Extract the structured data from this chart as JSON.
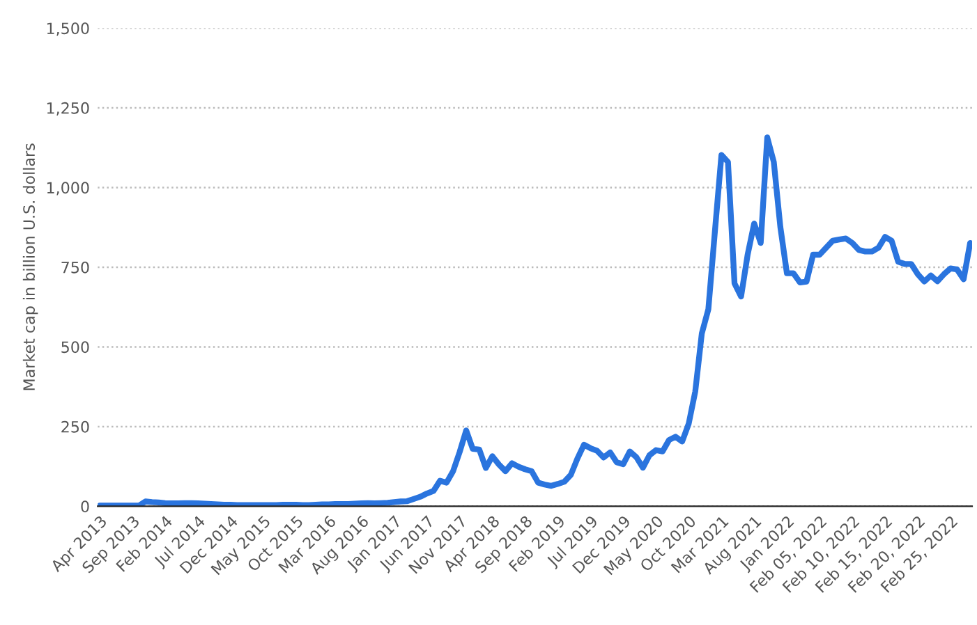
{
  "chart_data": {
    "type": "line",
    "ylabel": "Market cap in billion U.S. dollars",
    "categories": [
      "Apr 2013",
      null,
      null,
      null,
      null,
      "Sep 2013",
      null,
      null,
      null,
      null,
      "Feb 2014",
      null,
      null,
      null,
      null,
      "Jul 2014",
      null,
      null,
      null,
      null,
      "Dec 2014",
      null,
      null,
      null,
      null,
      "May 2015",
      null,
      null,
      null,
      null,
      "Oct 2015",
      null,
      null,
      null,
      null,
      "Mar 2016",
      null,
      null,
      null,
      null,
      "Aug 2016",
      null,
      null,
      null,
      null,
      "Jan 2017",
      null,
      null,
      null,
      null,
      "Jun 2017",
      null,
      null,
      null,
      null,
      "Nov 2017",
      null,
      null,
      null,
      null,
      "Apr 2018",
      null,
      null,
      null,
      null,
      "Sep 2018",
      null,
      null,
      null,
      null,
      "Feb 2019",
      null,
      null,
      null,
      null,
      "Jul 2019",
      null,
      null,
      null,
      null,
      "Dec 2019",
      null,
      null,
      null,
      null,
      "May 2020",
      null,
      null,
      null,
      null,
      "Oct 2020",
      null,
      null,
      null,
      null,
      "Mar 2021",
      null,
      null,
      null,
      null,
      "Aug 2021",
      null,
      null,
      null,
      null,
      "Jan 2022",
      null,
      null,
      null,
      null,
      "Feb 05, 2022",
      null,
      null,
      null,
      null,
      "Feb 10, 2022",
      null,
      null,
      null,
      null,
      "Feb 15, 2022",
      null,
      null,
      null,
      null,
      "Feb 20, 2022",
      null,
      null,
      null,
      null,
      "Feb 25, 2022",
      null,
      null,
      null
    ],
    "series": [
      {
        "color": "#2a74de",
        "values": [
          2,
          2,
          2,
          2,
          2,
          2,
          2,
          15,
          13,
          12,
          10,
          9,
          9,
          10,
          10,
          9,
          8,
          7,
          6,
          5,
          5,
          4,
          4,
          4,
          4,
          4,
          4,
          4,
          5,
          5,
          5,
          4,
          4,
          5,
          6,
          6,
          7,
          7,
          7,
          8,
          9,
          10,
          9,
          10,
          11,
          13,
          15,
          16,
          23,
          30,
          40,
          48,
          80,
          74,
          110,
          170,
          238,
          180,
          178,
          120,
          157,
          131,
          110,
          135,
          124,
          116,
          110,
          74,
          68,
          64,
          70,
          77,
          99,
          150,
          193,
          182,
          174,
          153,
          169,
          138,
          132,
          172,
          154,
          121,
          160,
          176,
          172,
          208,
          218,
          203,
          259,
          360,
          542,
          618,
          862,
          1102,
          1080,
          699,
          658,
          789,
          887,
          826,
          1157,
          1080,
          876,
          731,
          731,
          702,
          705,
          789,
          789,
          811,
          833,
          837,
          840,
          826,
          804,
          799,
          799,
          811,
          845,
          833,
          767,
          760,
          760,
          728,
          705,
          724,
          706,
          728,
          746,
          743,
          712,
          826
        ]
      }
    ],
    "ylim": [
      0,
      1500
    ],
    "yticks": [
      0,
      250,
      500,
      750,
      {
        "value": 1000,
        "label": "1,000"
      },
      {
        "value": 1250,
        "label": "1,250"
      },
      {
        "value": 1500,
        "label": "1,500"
      }
    ],
    "grid": "y",
    "legend": false,
    "marker": "none",
    "line_style": "solid"
  }
}
